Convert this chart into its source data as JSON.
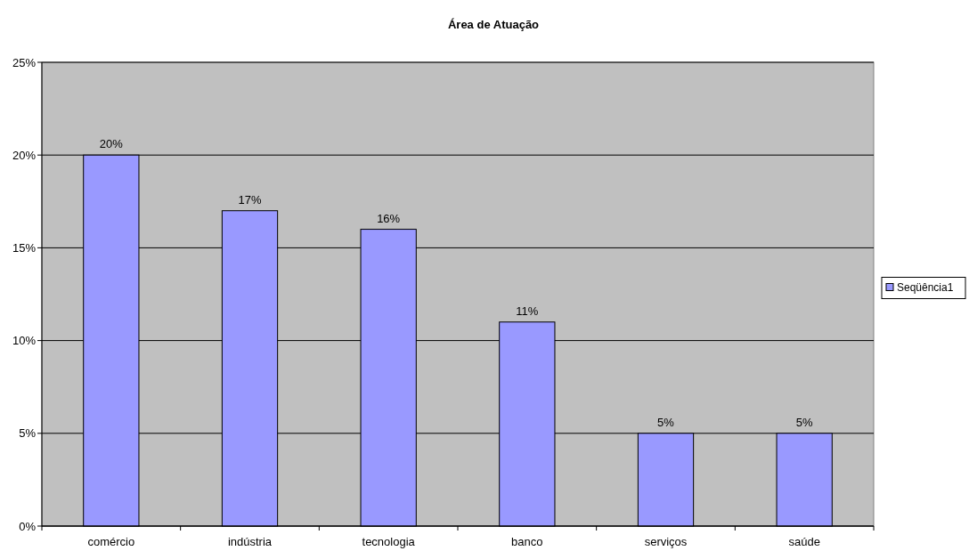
{
  "chart_data": {
    "type": "bar",
    "title": "Área de Atuação",
    "categories": [
      "comércio",
      "indústria",
      "tecnologia",
      "banco",
      "serviços",
      "saúde"
    ],
    "series": [
      {
        "name": "Seqüência1",
        "color": "#9999ff",
        "values": [
          20,
          17,
          16,
          11,
          5,
          5
        ],
        "value_labels": [
          "20%",
          "17%",
          "16%",
          "11%",
          "5%",
          "5%"
        ]
      }
    ],
    "ylim": [
      0,
      25
    ],
    "yticks": [
      {
        "value": 0,
        "label": "0%"
      },
      {
        "value": 5,
        "label": "5%"
      },
      {
        "value": 10,
        "label": "10%"
      },
      {
        "value": 15,
        "label": "15%"
      },
      {
        "value": 20,
        "label": "20%"
      },
      {
        "value": 25,
        "label": "25%"
      }
    ],
    "grid": "y",
    "legend": "right"
  }
}
